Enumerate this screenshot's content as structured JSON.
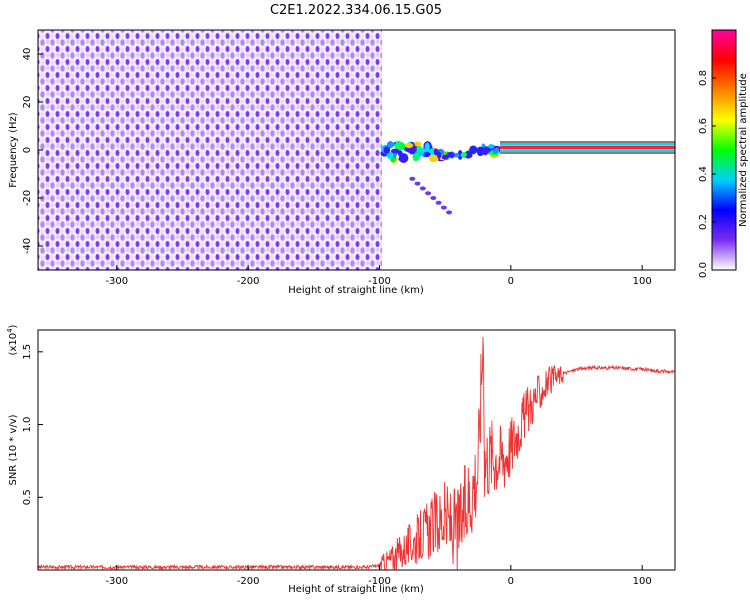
{
  "title": "C2E1.2022.334.06.15.G05",
  "chart_data": [
    {
      "type": "heatmap",
      "xlabel": "Height of straight line (km)",
      "ylabel": "Frequency (Hz)",
      "xlim": [
        -360,
        125
      ],
      "ylim": [
        -50,
        50
      ],
      "xticks": [
        -300,
        -200,
        -100,
        0,
        100
      ],
      "yticks": [
        -40,
        -20,
        0,
        20,
        40
      ],
      "grid": false,
      "colorbar": {
        "label": "Normalized spectral amplitude",
        "range": [
          0,
          1
        ],
        "ticks": [
          "0.0",
          "0.2",
          "0.4",
          "0.6",
          "0.8"
        ],
        "colormap": [
          "#ffffff",
          "#7b2cf0",
          "#0000ff",
          "#00d0ff",
          "#00ff00",
          "#ffff00",
          "#ff7f00",
          "#ff0000",
          "#ff00a0"
        ]
      },
      "regions": [
        {
          "x_range": [
            -360,
            -97
          ],
          "freq_range": [
            -50,
            50
          ],
          "amplitude_range": [
            0.0,
            0.2
          ],
          "pattern": "noise"
        },
        {
          "x_range": [
            -97,
            -10
          ],
          "freq_center": 0,
          "amplitude_range": [
            0.1,
            0.7
          ],
          "pattern": "scattered signal"
        },
        {
          "x_range": [
            -10,
            125
          ],
          "freq_center": 0,
          "amplitude": 1.0,
          "pattern": "steady carrier"
        }
      ]
    },
    {
      "type": "line",
      "xlabel": "Height of straight line (km)",
      "ylabel": "SNR (10 * v/v)",
      "yunit": "(x10^4)",
      "yunit_base": "(x10",
      "yunit_exp": "4",
      "xlim": [
        -360,
        125
      ],
      "ylim": [
        0,
        1.65
      ],
      "xticks": [
        -300,
        -200,
        -100,
        0,
        100
      ],
      "yticks": [
        "0.5",
        "1.0",
        "1.5"
      ],
      "grid": false,
      "color": "#ee3333",
      "x": [
        -360,
        -300,
        -200,
        -110,
        -100,
        -90,
        -80,
        -70,
        -60,
        -50,
        -45,
        -40,
        -35,
        -30,
        -25,
        -21,
        -20,
        -15,
        -10,
        -5,
        0,
        10,
        20,
        30,
        40,
        50,
        60,
        80,
        100,
        110,
        125
      ],
      "y": [
        0.02,
        0.02,
        0.02,
        0.02,
        0.03,
        0.08,
        0.15,
        0.22,
        0.3,
        0.35,
        0.3,
        0.28,
        0.4,
        0.55,
        0.7,
        1.65,
        0.75,
        0.8,
        0.78,
        0.78,
        0.85,
        1.05,
        1.2,
        1.3,
        1.35,
        1.38,
        1.39,
        1.39,
        1.38,
        1.37,
        1.36
      ]
    }
  ]
}
